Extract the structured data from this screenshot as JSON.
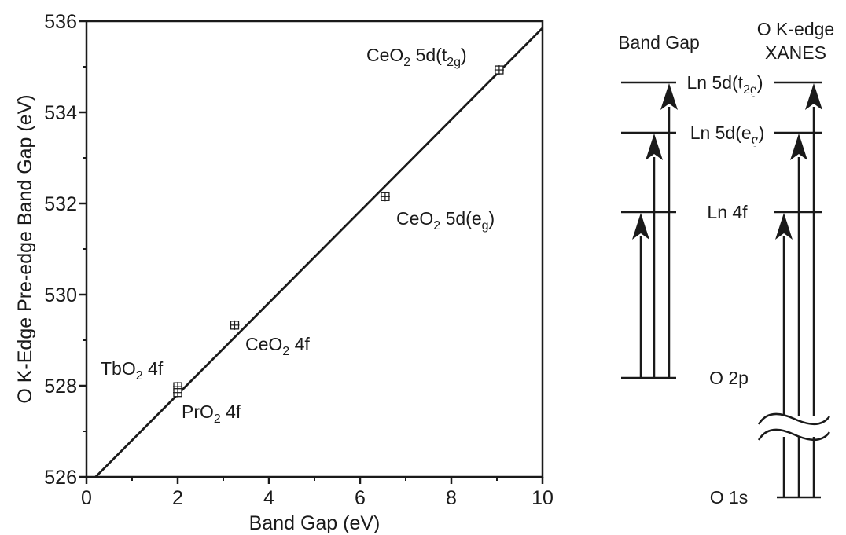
{
  "chart_data": {
    "type": "scatter",
    "xlabel": "Band Gap (eV)",
    "ylabel": "O K-Edge Pre-edge Band Gap (eV)",
    "xlim": [
      0,
      10
    ],
    "ylim": [
      526,
      536
    ],
    "xticks": [
      "0",
      "2",
      "4",
      "6",
      "8",
      "10"
    ],
    "yticks": [
      "526",
      "528",
      "530",
      "532",
      "534",
      "536"
    ],
    "grid": false,
    "fit_line": {
      "x": [
        0.2,
        10
      ],
      "y": [
        526.0,
        535.85
      ]
    },
    "points": [
      {
        "x": 9.05,
        "y": 534.93,
        "label": "CeO",
        "label_sub": "2",
        "label_rest": " 5d(t",
        "label_sub2": "2g",
        "label_tail": ")"
      },
      {
        "x": 6.55,
        "y": 532.15,
        "label": "CeO",
        "label_sub": "2",
        "label_rest": " 5d(e",
        "label_sub2": "g",
        "label_tail": ")"
      },
      {
        "x": 3.25,
        "y": 529.33,
        "label": "CeO",
        "label_sub": "2",
        "label_rest": " 4f",
        "label_sub2": "",
        "label_tail": ""
      },
      {
        "x": 2.0,
        "y": 527.98,
        "label": "TbO",
        "label_sub": "2",
        "label_rest": " 4f",
        "label_sub2": "",
        "label_tail": ""
      },
      {
        "x": 2.0,
        "y": 527.85,
        "label": "PrO",
        "label_sub": "2",
        "label_rest": " 4f",
        "label_sub2": "",
        "label_tail": ""
      }
    ]
  },
  "diagram": {
    "headers": {
      "band_gap": "Band Gap",
      "xanes_line1": "O K-edge",
      "xanes_line2": "XANES"
    },
    "levels": {
      "t2g_main": "Ln 5d(t",
      "t2g_sub": "2g",
      "t2g_tail": ")",
      "eg_main": "Ln 5d(e",
      "eg_sub": "g",
      "eg_tail": ")",
      "ln4f": "Ln 4f",
      "o2p": "O 2p",
      "o1s": "O 1s"
    }
  }
}
